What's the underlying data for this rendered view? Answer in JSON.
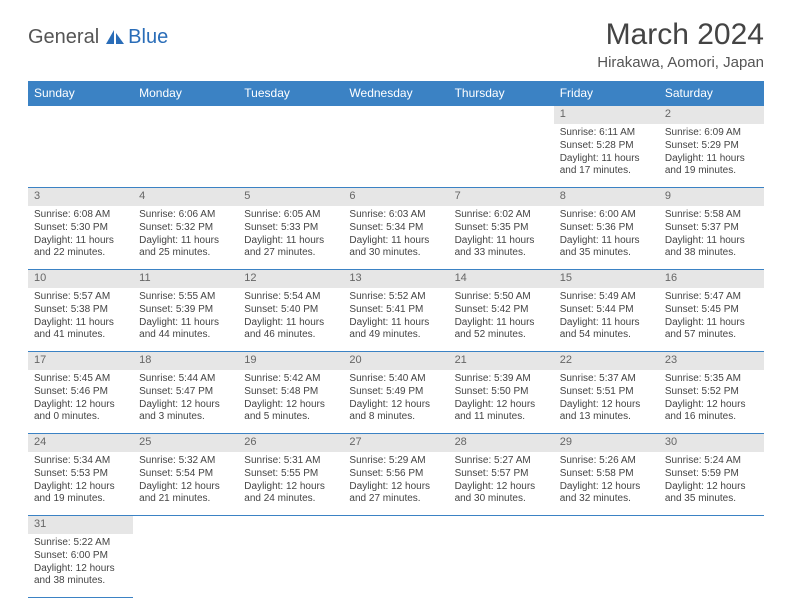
{
  "logo": {
    "text1": "General",
    "text2": "Blue"
  },
  "title": "March 2024",
  "location": "Hirakawa, Aomori, Japan",
  "colors": {
    "header_bg": "#3b82c4",
    "header_text": "#ffffff",
    "daynum_bg": "#e6e6e6",
    "border": "#3b82c4"
  },
  "weekdays": [
    "Sunday",
    "Monday",
    "Tuesday",
    "Wednesday",
    "Thursday",
    "Friday",
    "Saturday"
  ],
  "first_weekday": 5,
  "days": [
    {
      "n": 1,
      "sunrise": "6:11 AM",
      "sunset": "5:28 PM",
      "daylight": "11 hours and 17 minutes."
    },
    {
      "n": 2,
      "sunrise": "6:09 AM",
      "sunset": "5:29 PM",
      "daylight": "11 hours and 19 minutes."
    },
    {
      "n": 3,
      "sunrise": "6:08 AM",
      "sunset": "5:30 PM",
      "daylight": "11 hours and 22 minutes."
    },
    {
      "n": 4,
      "sunrise": "6:06 AM",
      "sunset": "5:32 PM",
      "daylight": "11 hours and 25 minutes."
    },
    {
      "n": 5,
      "sunrise": "6:05 AM",
      "sunset": "5:33 PM",
      "daylight": "11 hours and 27 minutes."
    },
    {
      "n": 6,
      "sunrise": "6:03 AM",
      "sunset": "5:34 PM",
      "daylight": "11 hours and 30 minutes."
    },
    {
      "n": 7,
      "sunrise": "6:02 AM",
      "sunset": "5:35 PM",
      "daylight": "11 hours and 33 minutes."
    },
    {
      "n": 8,
      "sunrise": "6:00 AM",
      "sunset": "5:36 PM",
      "daylight": "11 hours and 35 minutes."
    },
    {
      "n": 9,
      "sunrise": "5:58 AM",
      "sunset": "5:37 PM",
      "daylight": "11 hours and 38 minutes."
    },
    {
      "n": 10,
      "sunrise": "5:57 AM",
      "sunset": "5:38 PM",
      "daylight": "11 hours and 41 minutes."
    },
    {
      "n": 11,
      "sunrise": "5:55 AM",
      "sunset": "5:39 PM",
      "daylight": "11 hours and 44 minutes."
    },
    {
      "n": 12,
      "sunrise": "5:54 AM",
      "sunset": "5:40 PM",
      "daylight": "11 hours and 46 minutes."
    },
    {
      "n": 13,
      "sunrise": "5:52 AM",
      "sunset": "5:41 PM",
      "daylight": "11 hours and 49 minutes."
    },
    {
      "n": 14,
      "sunrise": "5:50 AM",
      "sunset": "5:42 PM",
      "daylight": "11 hours and 52 minutes."
    },
    {
      "n": 15,
      "sunrise": "5:49 AM",
      "sunset": "5:44 PM",
      "daylight": "11 hours and 54 minutes."
    },
    {
      "n": 16,
      "sunrise": "5:47 AM",
      "sunset": "5:45 PM",
      "daylight": "11 hours and 57 minutes."
    },
    {
      "n": 17,
      "sunrise": "5:45 AM",
      "sunset": "5:46 PM",
      "daylight": "12 hours and 0 minutes."
    },
    {
      "n": 18,
      "sunrise": "5:44 AM",
      "sunset": "5:47 PM",
      "daylight": "12 hours and 3 minutes."
    },
    {
      "n": 19,
      "sunrise": "5:42 AM",
      "sunset": "5:48 PM",
      "daylight": "12 hours and 5 minutes."
    },
    {
      "n": 20,
      "sunrise": "5:40 AM",
      "sunset": "5:49 PM",
      "daylight": "12 hours and 8 minutes."
    },
    {
      "n": 21,
      "sunrise": "5:39 AM",
      "sunset": "5:50 PM",
      "daylight": "12 hours and 11 minutes."
    },
    {
      "n": 22,
      "sunrise": "5:37 AM",
      "sunset": "5:51 PM",
      "daylight": "12 hours and 13 minutes."
    },
    {
      "n": 23,
      "sunrise": "5:35 AM",
      "sunset": "5:52 PM",
      "daylight": "12 hours and 16 minutes."
    },
    {
      "n": 24,
      "sunrise": "5:34 AM",
      "sunset": "5:53 PM",
      "daylight": "12 hours and 19 minutes."
    },
    {
      "n": 25,
      "sunrise": "5:32 AM",
      "sunset": "5:54 PM",
      "daylight": "12 hours and 21 minutes."
    },
    {
      "n": 26,
      "sunrise": "5:31 AM",
      "sunset": "5:55 PM",
      "daylight": "12 hours and 24 minutes."
    },
    {
      "n": 27,
      "sunrise": "5:29 AM",
      "sunset": "5:56 PM",
      "daylight": "12 hours and 27 minutes."
    },
    {
      "n": 28,
      "sunrise": "5:27 AM",
      "sunset": "5:57 PM",
      "daylight": "12 hours and 30 minutes."
    },
    {
      "n": 29,
      "sunrise": "5:26 AM",
      "sunset": "5:58 PM",
      "daylight": "12 hours and 32 minutes."
    },
    {
      "n": 30,
      "sunrise": "5:24 AM",
      "sunset": "5:59 PM",
      "daylight": "12 hours and 35 minutes."
    },
    {
      "n": 31,
      "sunrise": "5:22 AM",
      "sunset": "6:00 PM",
      "daylight": "12 hours and 38 minutes."
    }
  ],
  "labels": {
    "sunrise": "Sunrise:",
    "sunset": "Sunset:",
    "daylight": "Daylight:"
  }
}
